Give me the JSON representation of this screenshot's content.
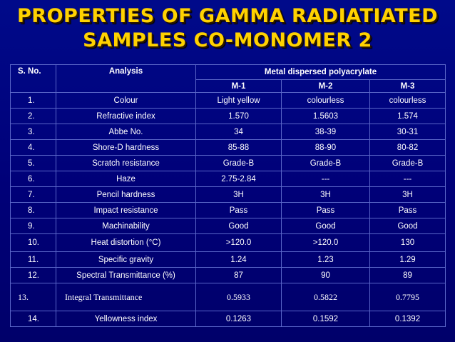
{
  "title": {
    "line1": "PROPERTIES OF GAMMA RADIATIATED",
    "line2": "SAMPLES CO-MONOMER 2"
  },
  "table": {
    "headers": {
      "sno": "S. No.",
      "analysis": "Analysis",
      "group": "Metal dispersed polyacrylate",
      "m1": "M-1",
      "m2": "M-2",
      "m3": "M-3"
    },
    "rows": [
      {
        "no": "1.",
        "analysis": "Colour",
        "m1": "Light yellow",
        "m2": "colourless",
        "m3": "colourless"
      },
      {
        "no": "2.",
        "analysis": "Refractive index",
        "m1": "1.570",
        "m2": "1.5603",
        "m3": "1.574"
      },
      {
        "no": "3.",
        "analysis": "Abbe No.",
        "m1": "34",
        "m2": "38-39",
        "m3": "30-31"
      },
      {
        "no": "4.",
        "analysis": "Shore-D hardness",
        "m1": "85-88",
        "m2": "88-90",
        "m3": "80-82"
      },
      {
        "no": "5.",
        "analysis": "Scratch resistance",
        "m1": "Grade-B",
        "m2": "Grade-B",
        "m3": "Grade-B"
      },
      {
        "no": "6.",
        "analysis": "Haze",
        "m1": "2.75-2.84",
        "m2": "---",
        "m3": "---"
      },
      {
        "no": "7.",
        "analysis": "Pencil hardness",
        "m1": "3H",
        "m2": "3H",
        "m3": "3H"
      },
      {
        "no": "8.",
        "analysis": "Impact resistance",
        "m1": "Pass",
        "m2": "Pass",
        "m3": "Pass"
      },
      {
        "no": "9.",
        "analysis": "Machinability",
        "m1": "Good",
        "m2": "Good",
        "m3": "Good"
      },
      {
        "no": "10.",
        "analysis": "Heat distortion (°C)",
        "m1": ">120.0",
        "m2": ">120.0",
        "m3": "130"
      },
      {
        "no": "11.",
        "analysis": "Specific gravity",
        "m1": "1.24",
        "m2": "1.23",
        "m3": "1.29"
      },
      {
        "no": "12.",
        "analysis": "Spectral Transmittance (%)",
        "m1": "87",
        "m2": "90",
        "m3": "89"
      },
      {
        "no": "13.",
        "analysis": "Integral Transmittance",
        "m1": "0.5933",
        "m2": "0.5822",
        "m3": "0.7795"
      },
      {
        "no": "14.",
        "analysis": "Yellowness index",
        "m1": "0.1263",
        "m2": "0.1592",
        "m3": "0.1392"
      }
    ]
  }
}
